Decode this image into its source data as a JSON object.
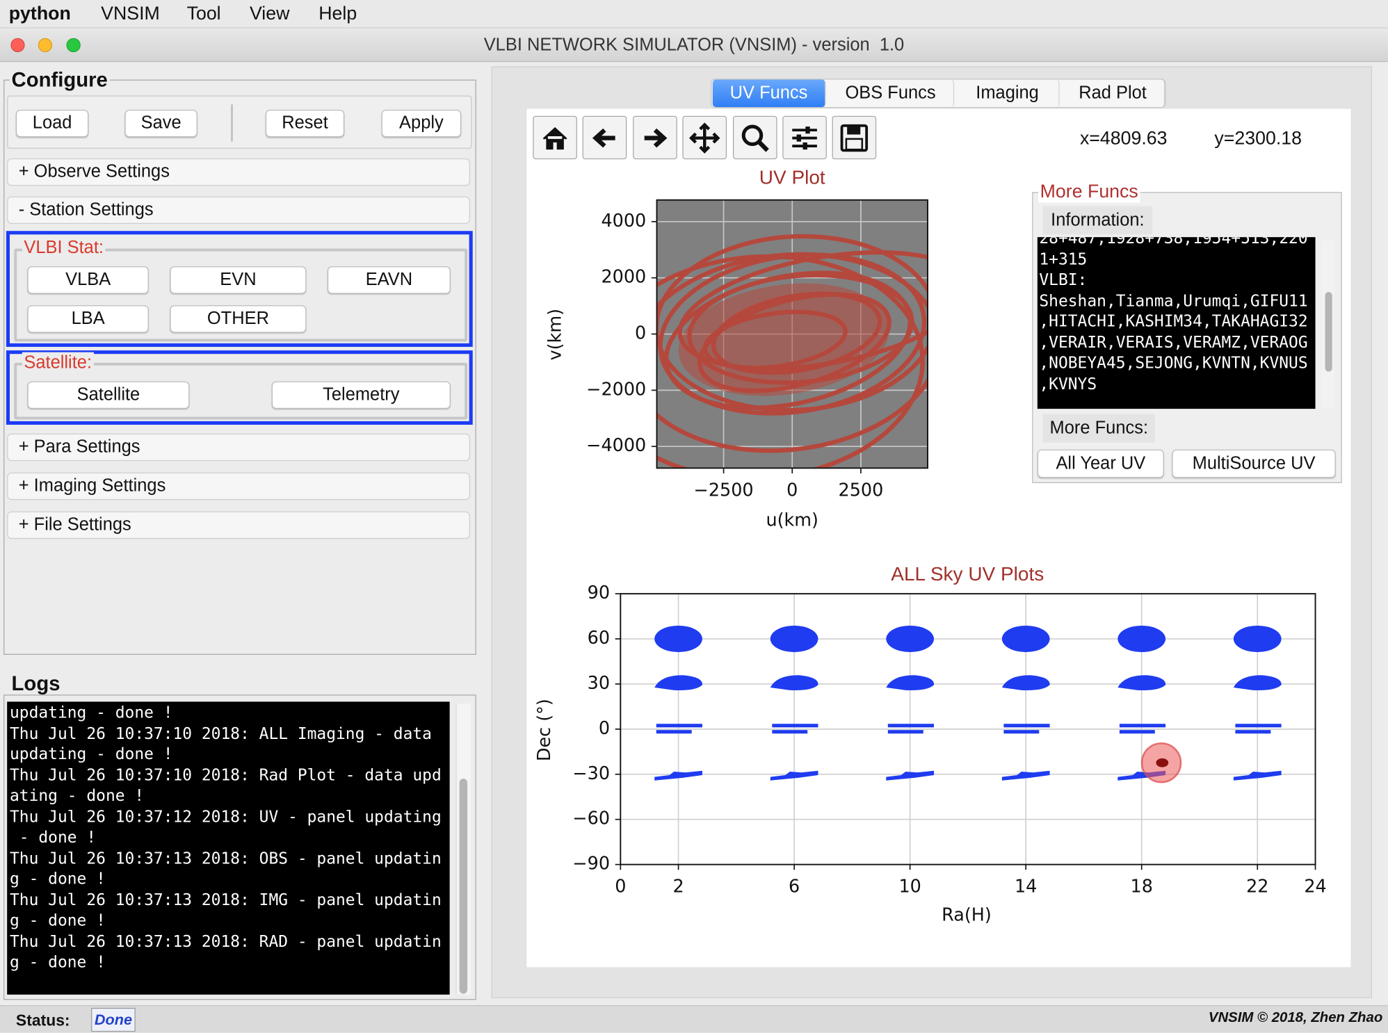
{
  "menu_bar": {
    "app": "python",
    "items": [
      "VNSIM",
      "Tool",
      "View",
      "Help"
    ]
  },
  "window": {
    "title": "VLBI NETWORK SIMULATOR (VNSIM) - version  1.0"
  },
  "configure": {
    "title": "Configure",
    "buttons": [
      "Load",
      "Save",
      "Reset",
      "Apply"
    ],
    "sections": [
      "+ Observe Settings",
      "- Station Settings"
    ],
    "vlbi_stat": {
      "title": "VLBI Stat:",
      "buttons": [
        "VLBA",
        "EVN",
        "EAVN",
        "LBA",
        "OTHER"
      ]
    },
    "satellite": {
      "title": "Satellite:",
      "buttons": [
        "Satellite",
        "Telemetry"
      ]
    },
    "more_sections": [
      "+ Para Settings",
      "+ Imaging Settings",
      "+ File Settings"
    ]
  },
  "logs": {
    "title": "Logs",
    "lines": [
      "updating - done !",
      "Thu Jul 26 10:37:10 2018: ALL Imaging - data",
      "updating - done !",
      "Thu Jul 26 10:37:10 2018: Rad Plot - data upd",
      "ating - done !",
      "Thu Jul 26 10:37:12 2018: UV - panel updating",
      " - done !",
      "Thu Jul 26 10:37:13 2018: OBS - panel updatin",
      "g - done !",
      "Thu Jul 26 10:37:13 2018: IMG - panel updatin",
      "g - done !",
      "Thu Jul 26 10:37:13 2018: RAD - panel updatin",
      "g - done !"
    ]
  },
  "status": {
    "label": "Status:",
    "value": "Done",
    "credit": "VNSIM © 2018, Zhen Zhao"
  },
  "tabs": {
    "items": [
      "UV Funcs",
      "OBS Funcs",
      "Imaging",
      "Rad Plot"
    ],
    "active": 0
  },
  "toolbar": {
    "x_coord": "x=4809.63",
    "y_coord": "y=2300.18"
  },
  "uv_plot": {
    "title": "UV Plot",
    "x_label": "u(km)",
    "y_label": "v(km)",
    "xlim": [
      -4935,
      4935
    ],
    "ylim": [
      -4770,
      4770
    ],
    "xticks": [
      {
        "value": -2500,
        "label": "−2500"
      },
      0,
      2500
    ],
    "yticks": [
      4000,
      2000,
      0,
      {
        "value": -2000,
        "label": "−2000"
      },
      {
        "value": -4000,
        "label": "−4000"
      }
    ],
    "color": "#b5483d",
    "background": "#808080",
    "grid": true
  },
  "more_funcs": {
    "title": "More Funcs",
    "information_label": "Information:",
    "info_lines": [
      "28+487,1928+738,1954+513,220",
      "1+315",
      "VLBI:",
      "Sheshan,Tianma,Urumqi,GIFU11",
      ",HITACHI,KASHIM34,TAKAHAGI32",
      ",VERAIR,VERAIS,VERAMZ,VERAOG",
      ",NOBEYA45,SEJONG,KVNTN,KVNUS",
      ",KVNYS"
    ],
    "more_funcs_label": "More Funcs:",
    "buttons": [
      "All Year UV",
      "MultiSource UV"
    ]
  },
  "sky_plot": {
    "title": "ALL Sky UV Plots",
    "x_label": "Ra(H)",
    "y_label": "Dec (°)",
    "xlim": [
      0,
      24
    ],
    "ylim": [
      -90,
      90
    ],
    "xticks": [
      0,
      2,
      6,
      10,
      14,
      18,
      22,
      24
    ],
    "yticks": [
      90,
      60,
      30,
      0,
      {
        "value": -30,
        "label": "−30"
      },
      {
        "value": -60,
        "label": "−60"
      },
      {
        "value": -90,
        "label": "−90"
      }
    ],
    "color": "#1f3cf0",
    "grid": true
  }
}
